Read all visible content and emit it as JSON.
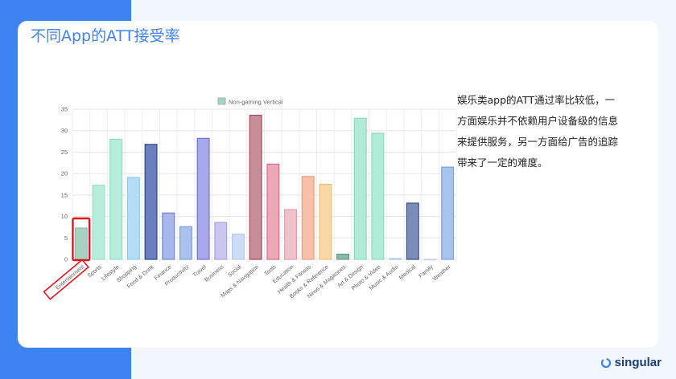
{
  "slide": {
    "title": "不同App的ATT接受率",
    "description": "娱乐类app的ATT通过率比较低，一方面娱乐并不依赖用户设备级的信息来提供服务，另一方面给广告的追踪带来了一定的难度。",
    "brand": "singular"
  },
  "colors": {
    "accent": "#3f82f1",
    "highlight": "#e0161e"
  },
  "chart_data": {
    "type": "bar",
    "legend": {
      "label": "Non-gaming Vertical",
      "placement": "top-center"
    },
    "categories": [
      "Entertainment",
      "Sports",
      "Lifestyle",
      "Shopping",
      "Food & Drink",
      "Finance",
      "Productivity",
      "Travel",
      "Business",
      "Social",
      "Maps & Navigation",
      "Tools",
      "Education",
      "Health & Fitness",
      "Books & Reference",
      "News & Magazines",
      "Art & Design",
      "Photo & Video",
      "Music & Audio",
      "Medical",
      "Family",
      "Weather"
    ],
    "values": [
      7.3,
      17.3,
      28.0,
      19.1,
      26.8,
      10.8,
      7.6,
      28.2,
      8.6,
      5.9,
      33.6,
      22.2,
      11.6,
      19.3,
      17.5,
      1.2,
      32.9,
      29.4,
      0.2,
      13.1,
      0,
      21.5
    ],
    "fill_colors": [
      "#a8d3c3",
      "#b8ecdb",
      "#b6eedb",
      "#b3def6",
      "#6a80be",
      "#a8b8ea",
      "#a8c3ef",
      "#a8a8ec",
      "#c9c6ef",
      "#cfdcf6",
      "#c78d98",
      "#e9a9b6",
      "#f2c2cc",
      "#f7c1aa",
      "#f8d8a9",
      "#8cb8a8",
      "#b1ead6",
      "#b1ecd8",
      "#cfe3f7",
      "#7a8db8",
      "#dde4f2",
      "#a9c3ef"
    ],
    "stroke_colors": [
      "#8fbeae",
      "#9cdfc8",
      "#8ce0c2",
      "#8fcdf0",
      "#2f4787",
      "#7088d0",
      "#7c9edf",
      "#6e6ede",
      "#a7a2e2",
      "#b2c8ef",
      "#a24d5e",
      "#d96b84",
      "#e79aab",
      "#ef9a78",
      "#f0be74",
      "#5e9c87",
      "#86dbbd",
      "#86ddc0",
      "#a9cdef",
      "#3b4f84",
      "#c4cee6",
      "#7aa2e6"
    ],
    "ylim": [
      0,
      35
    ],
    "yticks": [
      0,
      5,
      10,
      15,
      20,
      25,
      30,
      35
    ],
    "grid": true,
    "highlight_category": "Entertainment"
  }
}
